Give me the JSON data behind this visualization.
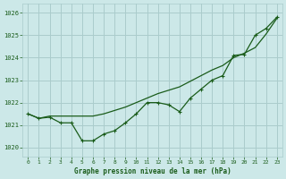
{
  "title": "Graphe pression niveau de la mer (hPa)",
  "bg_color": "#cce8e8",
  "grid_color": "#aacccc",
  "line_color": "#1a5c1a",
  "x_values": [
    0,
    1,
    2,
    3,
    4,
    5,
    6,
    7,
    8,
    9,
    10,
    11,
    12,
    13,
    14,
    15,
    16,
    17,
    18,
    19,
    20,
    21,
    22,
    23
  ],
  "line1": [
    1021.5,
    1021.3,
    1021.35,
    1021.1,
    1021.1,
    1020.3,
    1020.3,
    1020.6,
    1020.75,
    1021.1,
    1021.5,
    1022.0,
    1022.0,
    1021.9,
    1021.6,
    1022.2,
    1022.6,
    1023.0,
    1023.2,
    1024.1,
    1024.15,
    1025.0,
    1025.3,
    1025.8
  ],
  "line2": [
    1021.5,
    1021.3,
    1021.4,
    1021.4,
    1021.4,
    1021.4,
    1021.4,
    1021.5,
    1021.65,
    1021.8,
    1022.0,
    1022.2,
    1022.4,
    1022.55,
    1022.7,
    1022.95,
    1023.2,
    1023.45,
    1023.65,
    1024.0,
    1024.2,
    1024.45,
    1025.05,
    1025.75
  ],
  "ylim": [
    1019.6,
    1026.4
  ],
  "yticks": [
    1020,
    1021,
    1022,
    1023,
    1024,
    1025,
    1026
  ],
  "xticks": [
    0,
    1,
    2,
    3,
    4,
    5,
    6,
    7,
    8,
    9,
    10,
    11,
    12,
    13,
    14,
    15,
    16,
    17,
    18,
    19,
    20,
    21,
    22,
    23
  ],
  "xlabel_color": "#1a5c1a",
  "tick_color": "#1a5c1a"
}
